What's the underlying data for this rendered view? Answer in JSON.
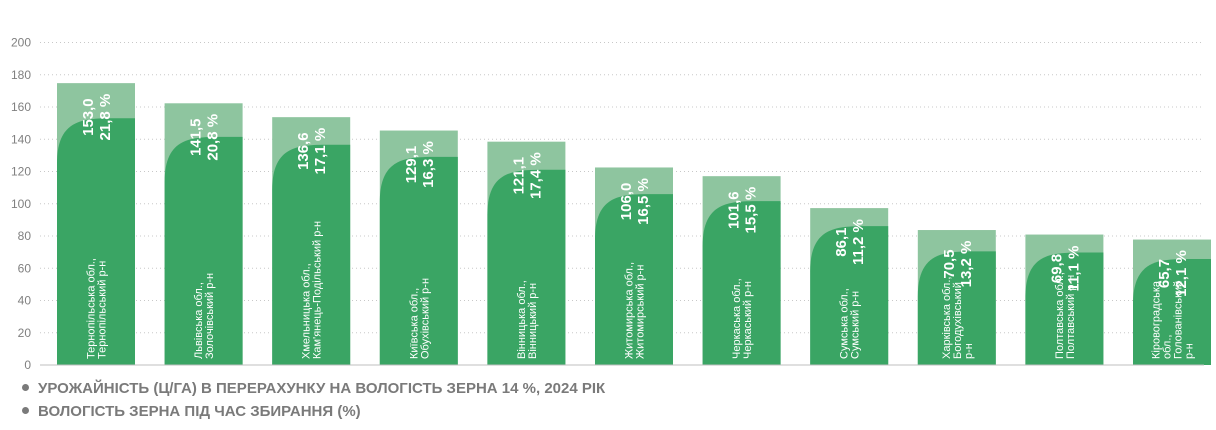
{
  "chart_data": {
    "type": "bar",
    "ylim": [
      0,
      200
    ],
    "yticks": [
      0,
      20,
      40,
      60,
      80,
      100,
      120,
      140,
      160,
      180,
      200
    ],
    "grid": true,
    "categories": [
      [
        "Тернопільська обл.,",
        "Тернопільський р-н"
      ],
      [
        "Львівська обл.,",
        "Золочівський р-н"
      ],
      [
        "Хмельницька обл.,",
        "Кам'янець-Подільський р-н"
      ],
      [
        "Київська обл.,",
        "Обухівський р-н"
      ],
      [
        "Вінницька обл.,",
        "Вінницький р-н"
      ],
      [
        "Житомирська обл.,",
        "Житомирський р-н"
      ],
      [
        "Черкаська обл.,",
        "Черкаський р-н"
      ],
      [
        "Сумська обл.,",
        "Сумський р-н"
      ],
      [
        "Харківська обл.,",
        "Богодухівський",
        "р-н"
      ],
      [
        "Полтавська обл.,",
        "Полтавський р-н"
      ],
      [
        "Кіровоградська",
        "обл.,",
        "Голованівський",
        "р-н"
      ]
    ],
    "series": [
      {
        "name": "УРОЖАЙНІСТЬ (Ц/ГА) В ПЕРЕРАХУНКУ НА ВОЛОГІСТЬ ЗЕРНА 14 %, 2024 РІК",
        "color": "#3aa564",
        "values": [
          153.0,
          141.5,
          136.6,
          129.1,
          121.1,
          106.0,
          101.6,
          86.1,
          70.5,
          69.8,
          65.7
        ],
        "labels": [
          "153,0",
          "141,5",
          "136,6",
          "129,1",
          "121,1",
          "106,0",
          "101,6",
          "86,1",
          "70,5",
          "69,8",
          "65,7"
        ]
      },
      {
        "name": "ВОЛОГІСТЬ ЗЕРНА ПІД ЧАС ЗБИРАННЯ (%)",
        "color": "#8ec59f",
        "values": [
          21.8,
          20.8,
          17.1,
          16.3,
          17.4,
          16.5,
          15.5,
          11.2,
          13.2,
          11.1,
          12.1
        ],
        "labels": [
          "21,8 %",
          "20,8 %",
          "17,1 %",
          "16,3 %",
          "17,4 %",
          "16,5 %",
          "15,5 %",
          "11,2 %",
          "13,2 %",
          "11,1 %",
          "12,1 %"
        ]
      }
    ]
  },
  "legend": {
    "items": [
      "УРОЖАЙНІСТЬ (Ц/ГА) В ПЕРЕРАХУНКУ НА ВОЛОГІСТЬ ЗЕРНА 14 %, 2024 РІК",
      "ВОЛОГІСТЬ ЗЕРНА ПІД ЧАС ЗБИРАННЯ (%)"
    ]
  }
}
